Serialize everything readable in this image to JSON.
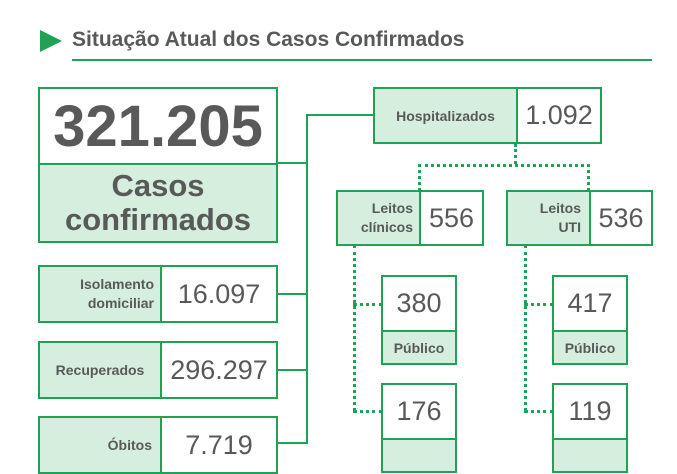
{
  "header": {
    "title": "Situação Atual dos Casos Confirmados",
    "colors": {
      "accent": "#1fa253",
      "fill": "#d5eedd",
      "text": "#595959"
    }
  },
  "total": {
    "value": "321.205",
    "label_line1": "Casos",
    "label_line2": "confirmados"
  },
  "left": {
    "isolamento": {
      "label_line1": "Isolamento",
      "label_line2": "domiciliar",
      "value": "16.097"
    },
    "recuperados": {
      "label": "Recuperados",
      "value": "296.297"
    },
    "obitos": {
      "label": "Óbitos",
      "value": "7.719"
    }
  },
  "hospital": {
    "label": "Hospitalizados",
    "value": "1.092"
  },
  "clinicos": {
    "label_line1": "Leitos",
    "label_line2": "clínicos",
    "value": "556",
    "publico": {
      "value": "380",
      "label": "Público"
    },
    "privado": {
      "value": "176"
    }
  },
  "uti": {
    "label_line1": "Leitos",
    "label_line2": "UTI",
    "value": "536",
    "publico": {
      "value": "417",
      "label": "Público"
    },
    "privado": {
      "value": "119"
    }
  }
}
